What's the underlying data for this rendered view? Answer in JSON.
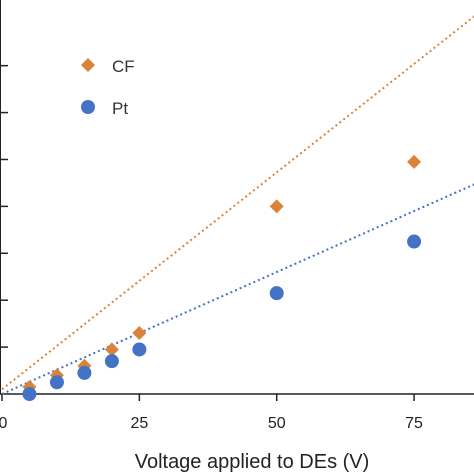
{
  "chart_data": {
    "type": "scatter",
    "title": "",
    "xlabel": "Voltage applied to DEs (V)",
    "ylabel": "",
    "xlim": [
      0,
      87
    ],
    "ylim": [
      0,
      8.4
    ],
    "x_ticks": [
      0,
      25,
      50,
      75
    ],
    "x_tick_labels": [
      "0",
      "25",
      "50",
      "75"
    ],
    "y_ticks": [
      1,
      2,
      3,
      4,
      5,
      6,
      7
    ],
    "grid": false,
    "legend_position": "top-left",
    "series": [
      {
        "name": "CF",
        "marker": "diamond",
        "color": "#D9843A",
        "trend": "dotted",
        "trend_slope": 0.0925,
        "trend_intercept": 0.1,
        "points": [
          {
            "x": 5,
            "y": 0.15
          },
          {
            "x": 10,
            "y": 0.4
          },
          {
            "x": 15,
            "y": 0.6
          },
          {
            "x": 20,
            "y": 0.95
          },
          {
            "x": 25,
            "y": 1.3
          },
          {
            "x": 50,
            "y": 4.0
          },
          {
            "x": 75,
            "y": 4.95
          }
        ]
      },
      {
        "name": "Pt",
        "marker": "circle",
        "color": "#4472C4",
        "trend": "dotted",
        "trend_slope": 0.052,
        "trend_intercept": 0.0,
        "points": [
          {
            "x": 5,
            "y": 0.0
          },
          {
            "x": 10,
            "y": 0.25
          },
          {
            "x": 15,
            "y": 0.45
          },
          {
            "x": 20,
            "y": 0.7
          },
          {
            "x": 25,
            "y": 0.95
          },
          {
            "x": 50,
            "y": 2.15
          },
          {
            "x": 75,
            "y": 3.25
          }
        ]
      }
    ]
  }
}
